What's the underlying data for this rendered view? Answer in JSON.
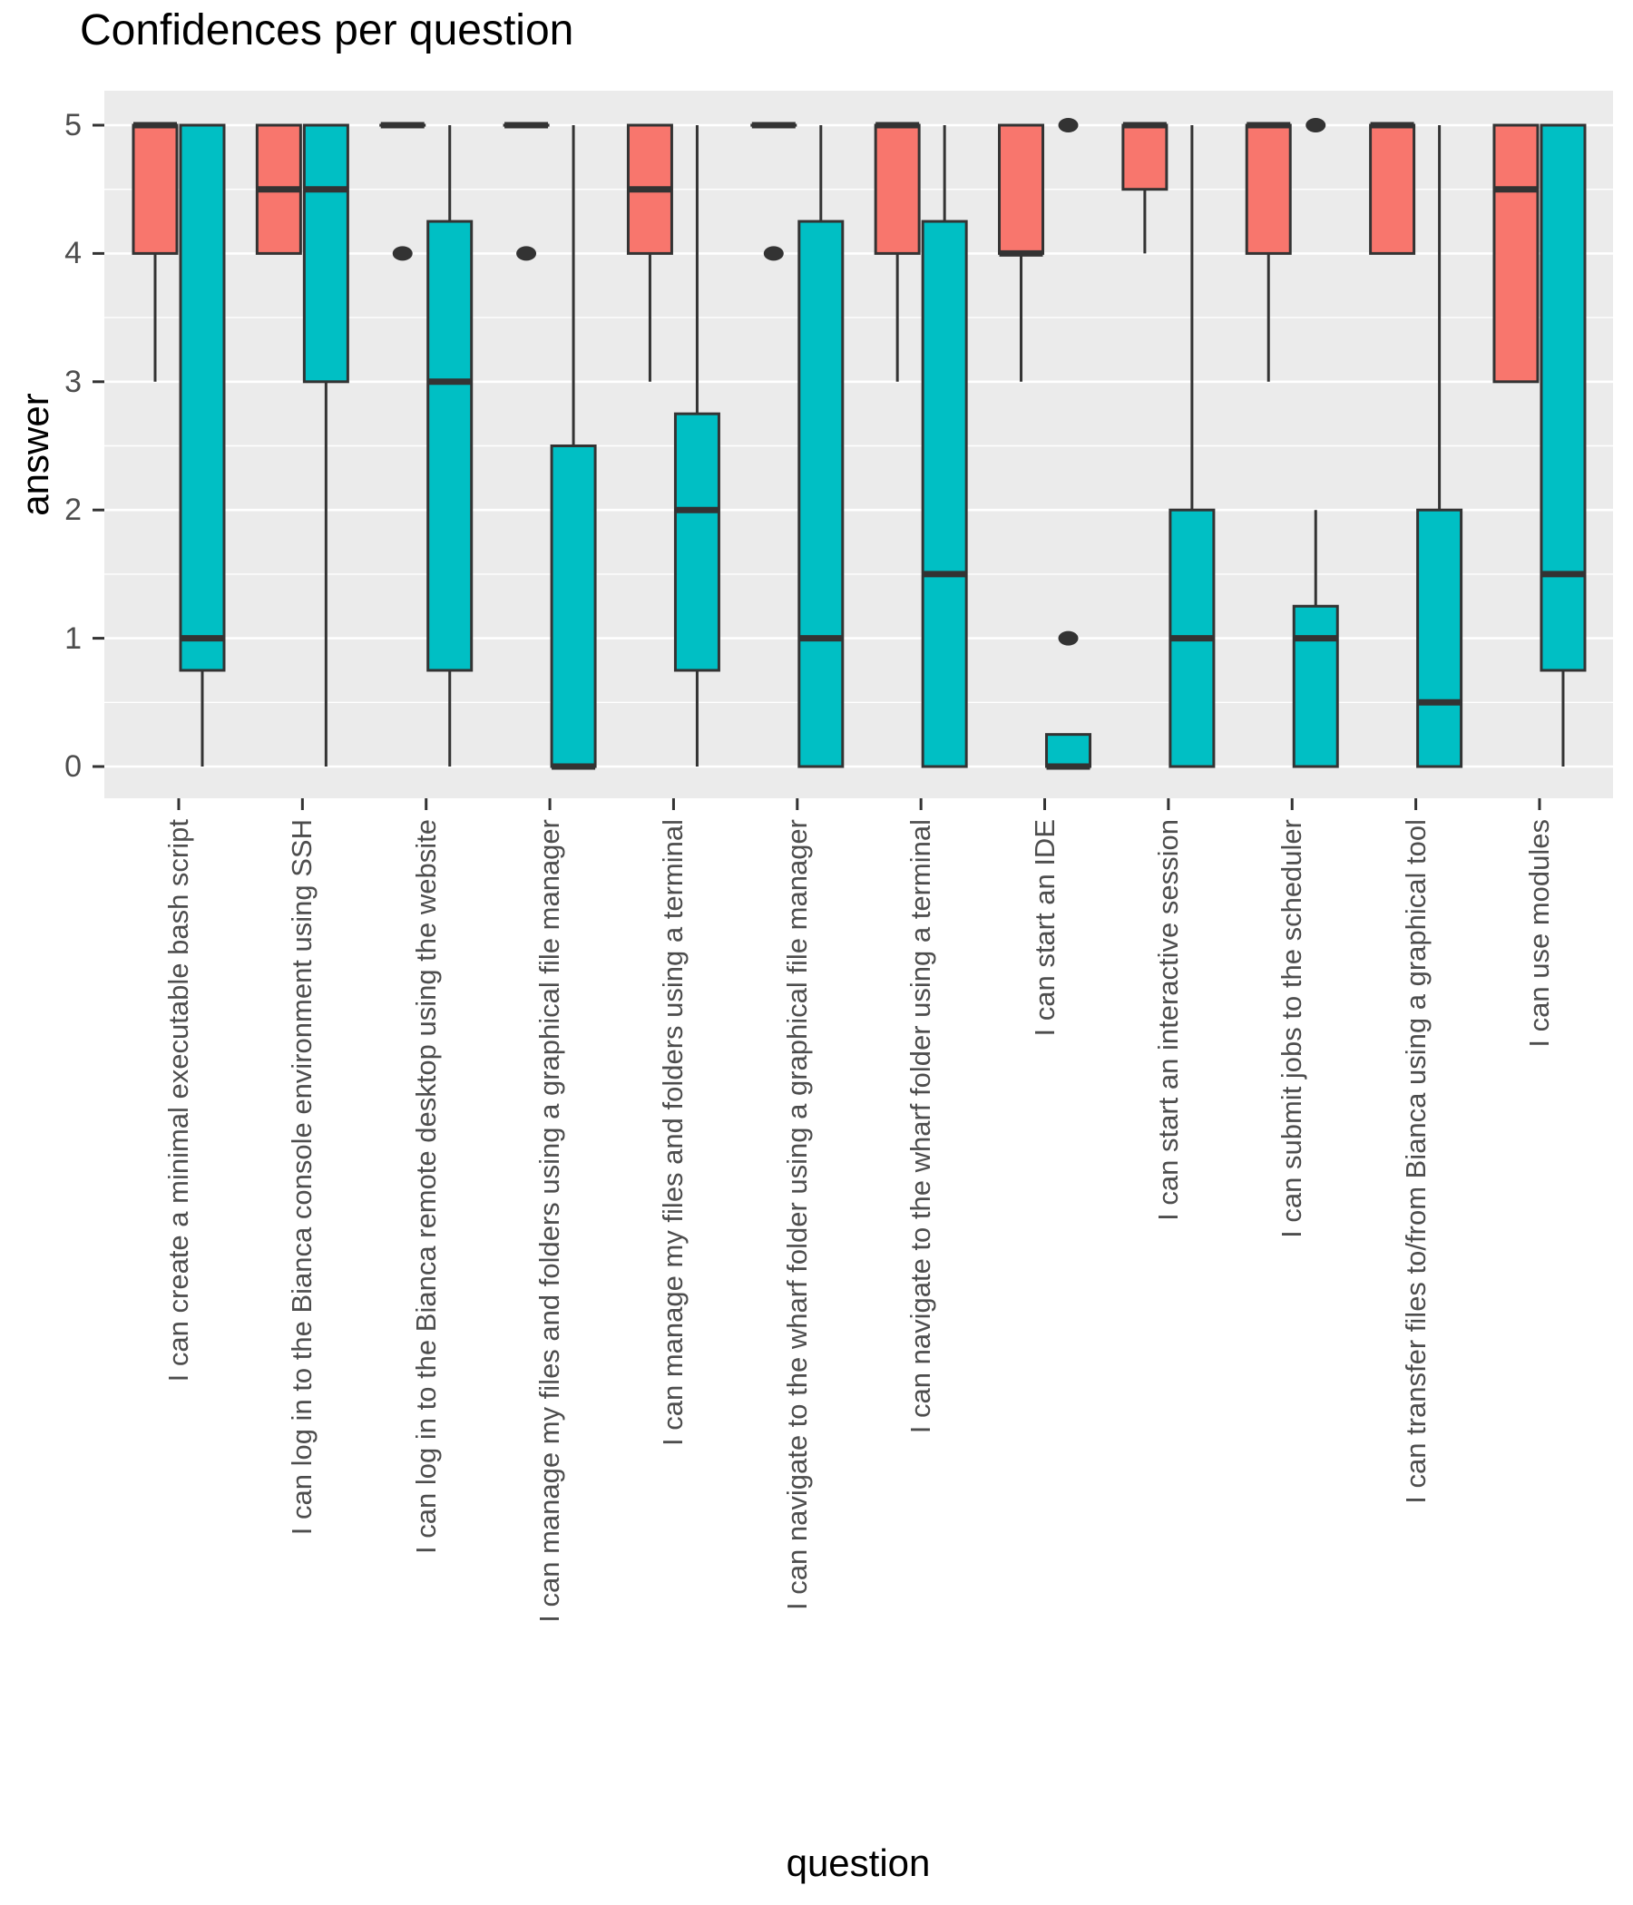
{
  "page": {
    "title": "Confidences per question"
  },
  "chart_data": {
    "type": "boxplot",
    "title": "Confidences per question",
    "xlabel": "question",
    "ylabel": "answer",
    "ylim": [
      0,
      5
    ],
    "yticks": [
      0,
      1,
      2,
      3,
      4,
      5
    ],
    "grid": {
      "panel_bg": "#EBEBEB",
      "major": "#FFFFFF",
      "minor": "#FFFFFF"
    },
    "legend": "none",
    "groups": [
      {
        "name": "salmon",
        "fill": "#F8766D"
      },
      {
        "name": "teal",
        "fill": "#00BFC4"
      }
    ],
    "questions": [
      {
        "label": "I can create a minimal executable bash script",
        "salmon": {
          "min": 3,
          "q1": 4,
          "median": 5,
          "q3": 5,
          "max": 5,
          "outliers": []
        },
        "teal": {
          "min": 0,
          "q1": 0.75,
          "median": 1,
          "q3": 5,
          "max": 5,
          "outliers": []
        }
      },
      {
        "label": "I can log in to the Bianca console environment using SSH",
        "salmon": {
          "min": 4,
          "q1": 4,
          "median": 4.5,
          "q3": 5,
          "max": 5,
          "outliers": []
        },
        "teal": {
          "min": 0,
          "q1": 3,
          "median": 4.5,
          "q3": 5,
          "max": 5,
          "outliers": []
        }
      },
      {
        "label": "I can log in to the Bianca remote desktop using the website",
        "salmon": {
          "min": 5,
          "q1": 5,
          "median": 5,
          "q3": 5,
          "max": 5,
          "outliers": [
            4
          ]
        },
        "teal": {
          "min": 0,
          "q1": 0.75,
          "median": 3,
          "q3": 4.25,
          "max": 5,
          "outliers": []
        }
      },
      {
        "label": "I can manage my files and folders using a graphical file manager",
        "salmon": {
          "min": 5,
          "q1": 5,
          "median": 5,
          "q3": 5,
          "max": 5,
          "outliers": [
            4
          ]
        },
        "teal": {
          "min": 0,
          "q1": 0,
          "median": 0,
          "q3": 2.5,
          "max": 5,
          "outliers": []
        }
      },
      {
        "label": "I can manage my files and folders using a terminal",
        "salmon": {
          "min": 3,
          "q1": 4,
          "median": 4.5,
          "q3": 5,
          "max": 5,
          "outliers": []
        },
        "teal": {
          "min": 0,
          "q1": 0.75,
          "median": 2,
          "q3": 2.75,
          "max": 5,
          "outliers": []
        }
      },
      {
        "label": "I can navigate to the wharf folder using a graphical file manager",
        "salmon": {
          "min": 5,
          "q1": 5,
          "median": 5,
          "q3": 5,
          "max": 5,
          "outliers": [
            4
          ]
        },
        "teal": {
          "min": 0,
          "q1": 0,
          "median": 1,
          "q3": 4.25,
          "max": 5,
          "outliers": []
        }
      },
      {
        "label": "I can navigate to the wharf folder using a terminal",
        "salmon": {
          "min": 3,
          "q1": 4,
          "median": 5,
          "q3": 5,
          "max": 5,
          "outliers": []
        },
        "teal": {
          "min": 0,
          "q1": 0,
          "median": 1.5,
          "q3": 4.25,
          "max": 5,
          "outliers": []
        }
      },
      {
        "label": "I can start an IDE",
        "salmon": {
          "min": 3,
          "q1": 4,
          "median": 4,
          "q3": 5,
          "max": 5,
          "outliers": []
        },
        "teal": {
          "min": 0,
          "q1": 0,
          "median": 0,
          "q3": 0.25,
          "max": 0.25,
          "outliers": [
            1,
            5
          ]
        }
      },
      {
        "label": "I can start an interactive session",
        "salmon": {
          "min": 4,
          "q1": 4.5,
          "median": 5,
          "q3": 5,
          "max": 5,
          "outliers": []
        },
        "teal": {
          "min": 0,
          "q1": 0,
          "median": 1,
          "q3": 2,
          "max": 5,
          "outliers": []
        }
      },
      {
        "label": "I can submit jobs to the scheduler",
        "salmon": {
          "min": 3,
          "q1": 4,
          "median": 5,
          "q3": 5,
          "max": 5,
          "outliers": []
        },
        "teal": {
          "min": 0,
          "q1": 0,
          "median": 1,
          "q3": 1.25,
          "max": 2,
          "outliers": [
            5
          ]
        }
      },
      {
        "label": "I can transfer files to/from Bianca using a graphical tool",
        "salmon": {
          "min": 4,
          "q1": 4,
          "median": 5,
          "q3": 5,
          "max": 5,
          "outliers": []
        },
        "teal": {
          "min": 0,
          "q1": 0,
          "median": 0.5,
          "q3": 2,
          "max": 5,
          "outliers": []
        }
      },
      {
        "label": "I can use modules",
        "salmon": {
          "min": 3,
          "q1": 3,
          "median": 4.5,
          "q3": 5,
          "max": 5,
          "outliers": []
        },
        "teal": {
          "min": 0,
          "q1": 0.75,
          "median": 1.5,
          "q3": 5,
          "max": 5,
          "outliers": []
        }
      }
    ]
  },
  "style": {
    "box_stroke": "#333333",
    "outlier_color": "#333333",
    "axis_text": "#4D4D4D",
    "tick_color": "#333333"
  }
}
